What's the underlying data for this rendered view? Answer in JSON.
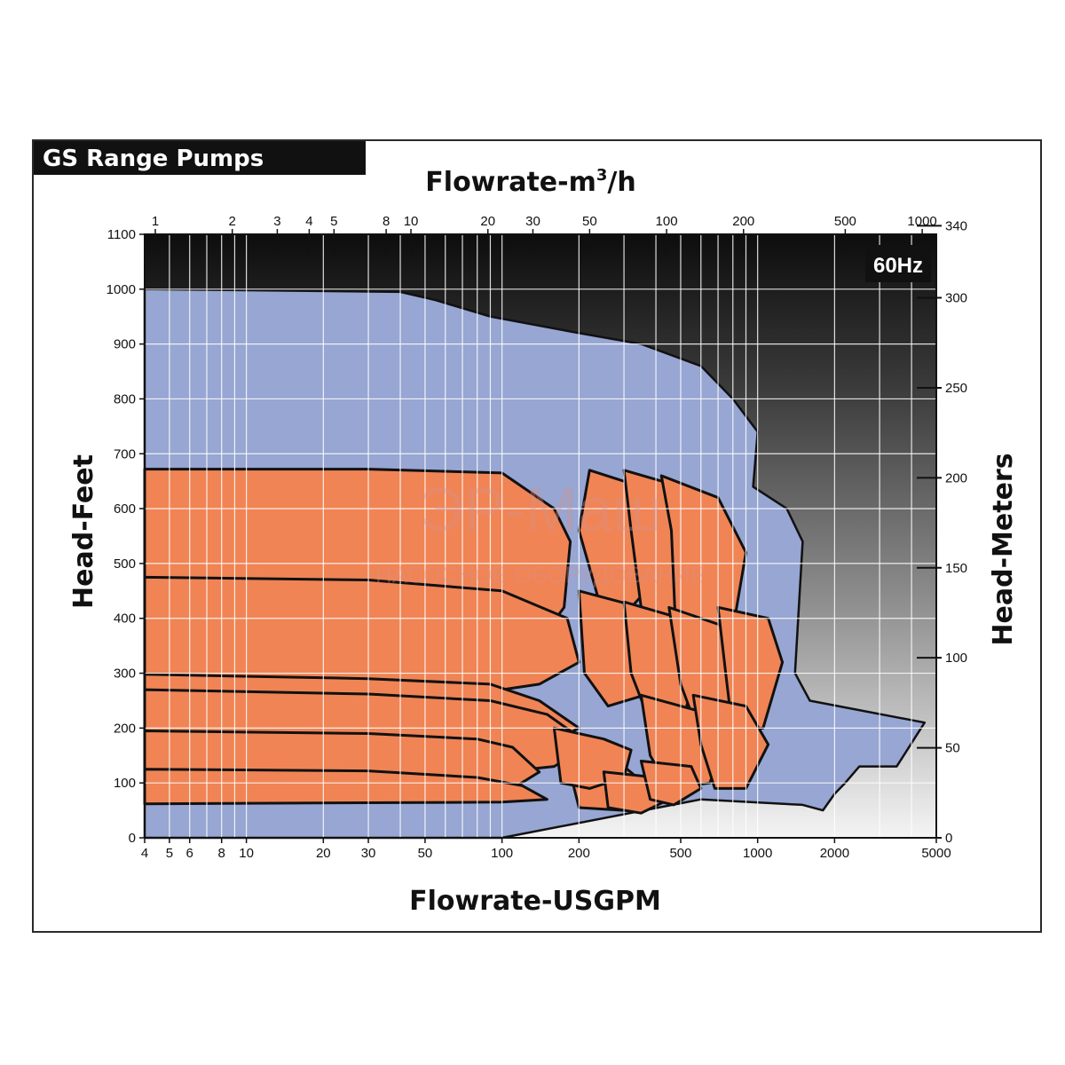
{
  "chart_data": {
    "type": "area",
    "title": "GS Range Pumps",
    "badge": "60Hz",
    "xlabel_bottom": "Flowrate-USGPM",
    "xlabel_top": "Flowrate-m",
    "xlabel_top_sup": "3",
    "xlabel_top_suffix": "/h",
    "ylabel_left": "Head-Feet",
    "ylabel_right": "Head-Meters",
    "x_scale": "log",
    "xlim_usgpm": [
      4,
      5000
    ],
    "ylim_feet": [
      0,
      1100
    ],
    "ylim_meters": [
      0,
      340
    ],
    "x_ticks_bottom": [
      "4",
      "5",
      "6",
      "8",
      "10",
      "20",
      "30",
      "50",
      "100",
      "200",
      "500",
      "1000",
      "2000",
      "5000"
    ],
    "x_ticks_top": [
      "1",
      "2",
      "3",
      "4",
      "5",
      "8",
      "10",
      "20",
      "30",
      "50",
      "100",
      "200",
      "500",
      "1000"
    ],
    "y_ticks_left": [
      "0",
      "100",
      "200",
      "300",
      "400",
      "500",
      "600",
      "700",
      "800",
      "900",
      "1000",
      "1100"
    ],
    "y_ticks_right": [
      "0",
      "50",
      "100",
      "150",
      "200",
      "250",
      "300",
      "340"
    ],
    "grid": true,
    "watermark": {
      "line1": "ЭР-Маш",
      "line2": "НАСОСНОЕ ОБОРУДОВАНИЕ"
    },
    "colors": {
      "envelope": "#97a6d2",
      "curves": "#f08455",
      "outline": "#111111",
      "title_bg": "#111111"
    },
    "series": [
      {
        "kind": "envelope",
        "points": [
          [
            4,
            0
          ],
          [
            4,
            1000
          ],
          [
            40,
            995
          ],
          [
            55,
            980
          ],
          [
            90,
            950
          ],
          [
            200,
            920
          ],
          [
            350,
            900
          ],
          [
            600,
            860
          ],
          [
            800,
            800
          ],
          [
            1000,
            740
          ],
          [
            960,
            640
          ],
          [
            1300,
            600
          ],
          [
            1500,
            540
          ],
          [
            1400,
            300
          ],
          [
            1600,
            250
          ],
          [
            4500,
            210
          ],
          [
            3500,
            130
          ],
          [
            2500,
            130
          ],
          [
            2200,
            100
          ],
          [
            2000,
            80
          ],
          [
            1800,
            50
          ],
          [
            1500,
            60
          ],
          [
            600,
            70
          ],
          [
            100,
            0
          ]
        ]
      },
      {
        "kind": "curve",
        "points": [
          [
            4,
            672
          ],
          [
            30,
            672
          ],
          [
            100,
            665
          ],
          [
            160,
            600
          ],
          [
            185,
            540
          ],
          [
            175,
            420
          ],
          [
            140,
            360
          ],
          [
            100,
            320
          ],
          [
            4,
            305
          ]
        ]
      },
      {
        "kind": "curve",
        "points": [
          [
            4,
            475
          ],
          [
            30,
            470
          ],
          [
            100,
            450
          ],
          [
            180,
            400
          ],
          [
            200,
            320
          ],
          [
            140,
            280
          ],
          [
            100,
            270
          ],
          [
            4,
            262
          ]
        ]
      },
      {
        "kind": "curve",
        "points": [
          [
            4,
            298
          ],
          [
            30,
            290
          ],
          [
            90,
            280
          ],
          [
            140,
            250
          ],
          [
            200,
            200
          ],
          [
            150,
            170
          ],
          [
            100,
            160
          ],
          [
            4,
            150
          ]
        ]
      },
      {
        "kind": "curve",
        "points": [
          [
            4,
            270
          ],
          [
            30,
            262
          ],
          [
            90,
            250
          ],
          [
            150,
            225
          ],
          [
            220,
            170
          ],
          [
            160,
            130
          ],
          [
            100,
            120
          ],
          [
            4,
            108
          ]
        ]
      },
      {
        "kind": "curve",
        "points": [
          [
            4,
            195
          ],
          [
            30,
            190
          ],
          [
            80,
            180
          ],
          [
            110,
            165
          ],
          [
            140,
            120
          ],
          [
            110,
            90
          ],
          [
            80,
            75
          ],
          [
            4,
            70
          ]
        ]
      },
      {
        "kind": "curve",
        "points": [
          [
            4,
            125
          ],
          [
            30,
            122
          ],
          [
            80,
            110
          ],
          [
            120,
            95
          ],
          [
            150,
            70
          ],
          [
            100,
            65
          ],
          [
            4,
            62
          ]
        ]
      },
      {
        "kind": "curve",
        "points": [
          [
            180,
            140
          ],
          [
            300,
            130
          ],
          [
            380,
            90
          ],
          [
            300,
            50
          ],
          [
            200,
            55
          ]
        ]
      },
      {
        "kind": "curve",
        "points": [
          [
            160,
            200
          ],
          [
            250,
            180
          ],
          [
            320,
            160
          ],
          [
            300,
            110
          ],
          [
            220,
            90
          ],
          [
            170,
            100
          ]
        ]
      },
      {
        "kind": "curve",
        "points": [
          [
            220,
            670
          ],
          [
            350,
            640
          ],
          [
            420,
            580
          ],
          [
            400,
            470
          ],
          [
            320,
            420
          ],
          [
            240,
            430
          ],
          [
            200,
            560
          ]
        ]
      },
      {
        "kind": "curve",
        "points": [
          [
            300,
            670
          ],
          [
            500,
            640
          ],
          [
            600,
            560
          ],
          [
            560,
            440
          ],
          [
            460,
            400
          ],
          [
            350,
            420
          ],
          [
            320,
            560
          ]
        ]
      },
      {
        "kind": "curve",
        "points": [
          [
            420,
            660
          ],
          [
            700,
            620
          ],
          [
            900,
            520
          ],
          [
            800,
            380
          ],
          [
            600,
            330
          ],
          [
            480,
            360
          ],
          [
            460,
            560
          ]
        ]
      },
      {
        "kind": "curve",
        "points": [
          [
            200,
            450
          ],
          [
            350,
            420
          ],
          [
            420,
            360
          ],
          [
            360,
            260
          ],
          [
            260,
            240
          ],
          [
            210,
            300
          ]
        ]
      },
      {
        "kind": "curve",
        "points": [
          [
            300,
            430
          ],
          [
            500,
            400
          ],
          [
            600,
            330
          ],
          [
            520,
            230
          ],
          [
            380,
            210
          ],
          [
            320,
            300
          ]
        ]
      },
      {
        "kind": "curve",
        "points": [
          [
            450,
            420
          ],
          [
            800,
            380
          ],
          [
            1000,
            300
          ],
          [
            850,
            190
          ],
          [
            600,
            180
          ],
          [
            500,
            280
          ]
        ]
      },
      {
        "kind": "curve",
        "points": [
          [
            700,
            420
          ],
          [
            1100,
            400
          ],
          [
            1250,
            320
          ],
          [
            1050,
            200
          ],
          [
            800,
            190
          ],
          [
            750,
            300
          ]
        ]
      },
      {
        "kind": "curve",
        "points": [
          [
            350,
            260
          ],
          [
            600,
            230
          ],
          [
            750,
            180
          ],
          [
            650,
            100
          ],
          [
            450,
            90
          ],
          [
            380,
            150
          ]
        ]
      },
      {
        "kind": "curve",
        "points": [
          [
            560,
            260
          ],
          [
            900,
            240
          ],
          [
            1100,
            170
          ],
          [
            900,
            90
          ],
          [
            680,
            90
          ],
          [
            600,
            170
          ]
        ]
      },
      {
        "kind": "curve",
        "points": [
          [
            250,
            120
          ],
          [
            400,
            110
          ],
          [
            450,
            70
          ],
          [
            350,
            45
          ],
          [
            260,
            55
          ]
        ]
      },
      {
        "kind": "curve",
        "points": [
          [
            350,
            140
          ],
          [
            550,
            130
          ],
          [
            600,
            90
          ],
          [
            470,
            60
          ],
          [
            380,
            70
          ]
        ]
      }
    ]
  }
}
